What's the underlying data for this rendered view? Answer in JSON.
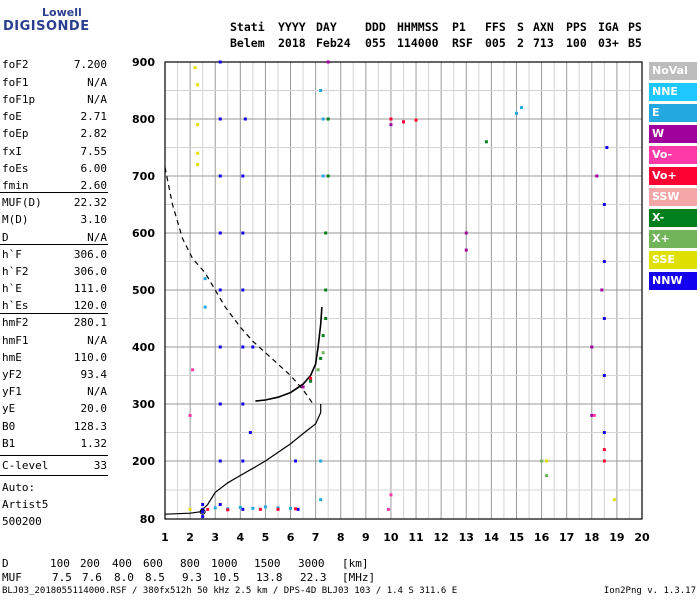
{
  "logo": {
    "top": "Lowell",
    "bottom": "DIGISONDE"
  },
  "header": {
    "labels": [
      "Stati",
      "YYYY",
      "DAY",
      "DDD",
      "HHMMSS",
      "P1",
      "FFS",
      "S",
      "AXN",
      "PPS",
      "IGA",
      "PS"
    ],
    "values": [
      "Belem",
      "2018",
      "Feb24",
      "055",
      "114000",
      "RSF",
      "005",
      "2",
      "713",
      "100",
      "03+",
      "B5"
    ]
  },
  "params": [
    {
      "label": "foF2",
      "value": "7.200"
    },
    {
      "label": "foF1",
      "value": "N/A"
    },
    {
      "label": "foF1p",
      "value": "N/A"
    },
    {
      "label": "foE",
      "value": "2.71"
    },
    {
      "label": "foEp",
      "value": "2.82"
    },
    {
      "label": "fxI",
      "value": "7.55"
    },
    {
      "label": "foEs",
      "value": "6.00"
    },
    {
      "label": "fmin",
      "value": "2.60"
    },
    {
      "label": "MUF(D)",
      "value": "22.32"
    },
    {
      "label": "M(D)",
      "value": "3.10"
    },
    {
      "label": "D",
      "value": "N/A"
    },
    {
      "label": "h`F",
      "value": "306.0"
    },
    {
      "label": "h`F2",
      "value": "306.0"
    },
    {
      "label": "h`E",
      "value": "111.0"
    },
    {
      "label": "h`Es",
      "value": "120.0"
    },
    {
      "label": "hmF2",
      "value": "280.1"
    },
    {
      "label": "hmF1",
      "value": "N/A"
    },
    {
      "label": "hmE",
      "value": "110.0"
    },
    {
      "label": "yF2",
      "value": "93.4"
    },
    {
      "label": "yF1",
      "value": "N/A"
    },
    {
      "label": "yE",
      "value": "20.0"
    },
    {
      "label": "B0",
      "value": "128.3"
    },
    {
      "label": "B1",
      "value": "1.32"
    },
    {
      "label": "C-level",
      "value": "33"
    }
  ],
  "auto": {
    "line1": "Auto:",
    "line2": "Artist5",
    "line3": "500200"
  },
  "legend": [
    {
      "label": "NoVal",
      "bg": "#bdbdbd",
      "fg": "#ffffff"
    },
    {
      "label": "NNE",
      "bg": "#1ec8ff",
      "fg": "#ffffff"
    },
    {
      "label": "E",
      "bg": "#23a9e0",
      "fg": "#ffffff"
    },
    {
      "label": "W",
      "bg": "#a0009c",
      "fg": "#ffffff"
    },
    {
      "label": "Vo-",
      "bg": "#ff3aa8",
      "fg": "#ffffff"
    },
    {
      "label": "Vo+",
      "bg": "#ff0033",
      "fg": "#ffffff"
    },
    {
      "label": "SSW",
      "bg": "#f5a6a6",
      "fg": "#ffffff"
    },
    {
      "label": "X-",
      "bg": "#007f1c",
      "fg": "#ffffff"
    },
    {
      "label": "X+",
      "bg": "#72b45a",
      "fg": "#ffffff"
    },
    {
      "label": "SSE",
      "bg": "#e0e000",
      "fg": "#ffffff"
    },
    {
      "label": "NNW",
      "bg": "#1400ee",
      "fg": "#ffffff"
    }
  ],
  "bottom": {
    "d_label": "D",
    "d_values": [
      "100",
      "200",
      "400",
      "600",
      "800",
      "1000",
      "1500",
      "3000"
    ],
    "d_unit": "[km]",
    "muf_label": "MUF",
    "muf_values": [
      "7.5",
      "7.6",
      "8.0",
      "8.5",
      "9.3",
      "10.5",
      "13.8",
      "22.3"
    ],
    "muf_unit": "[MHz]"
  },
  "footer": {
    "left": "BLJ03_2018055114000.RSF / 380fx512h 50 kHz 2.5 km / DPS-4D BLJ03 103 / 1.4 S 311.6 E",
    "right": "Ion2Png v. 1.3.17"
  },
  "chart_data": {
    "type": "scatter",
    "x_ticks": [
      "1",
      "2",
      "3",
      "4",
      "5",
      "6",
      "7",
      "8",
      "9",
      "10",
      "11",
      "12",
      "13",
      "14",
      "15",
      "16",
      "17",
      "18",
      "19",
      "20"
    ],
    "y_ticks": [
      "900",
      "800",
      "700",
      "600",
      "500",
      "400",
      "300",
      "200",
      "80"
    ],
    "xlim": [
      1,
      20
    ],
    "y_tick_values": [
      900,
      800,
      700,
      600,
      500,
      400,
      300,
      200,
      80
    ],
    "grid": true,
    "legend_position": "right",
    "series": [
      {
        "color": "#1400ee",
        "points": [
          [
            2.5,
            85
          ],
          [
            2.5,
            95
          ],
          [
            2.5,
            100
          ],
          [
            2.5,
            110
          ],
          [
            3.2,
            110
          ],
          [
            3.2,
            200
          ],
          [
            3.2,
            300
          ],
          [
            3.2,
            400
          ],
          [
            3.2,
            500
          ],
          [
            3.2,
            600
          ],
          [
            3.2,
            700
          ],
          [
            3.2,
            800
          ],
          [
            3.2,
            900
          ],
          [
            4.1,
            100
          ],
          [
            4.1,
            200
          ],
          [
            4.1,
            300
          ],
          [
            4.1,
            400
          ],
          [
            4.1,
            500
          ],
          [
            4.1,
            600
          ],
          [
            4.1,
            700
          ],
          [
            4.2,
            800
          ],
          [
            4.4,
            250
          ],
          [
            4.5,
            400
          ],
          [
            6.2,
            200
          ],
          [
            6.3,
            100
          ],
          [
            18.5,
            250
          ],
          [
            18.5,
            350
          ],
          [
            18.5,
            450
          ],
          [
            18.5,
            550
          ],
          [
            18.5,
            650
          ],
          [
            18.6,
            750
          ]
        ]
      },
      {
        "color": "#23a9e0",
        "points": [
          [
            3.0,
            103
          ],
          [
            3.5,
            101
          ],
          [
            4.0,
            104
          ],
          [
            4.5,
            102
          ],
          [
            5.0,
            105
          ],
          [
            5.5,
            103
          ],
          [
            6.0,
            102
          ],
          [
            7.2,
            120
          ],
          [
            7.2,
            200
          ],
          [
            7.3,
            700
          ],
          [
            7.3,
            800
          ],
          [
            7.2,
            850
          ],
          [
            15.0,
            810
          ],
          [
            15.2,
            820
          ],
          [
            2.6,
            470
          ],
          [
            2.6,
            520
          ]
        ]
      },
      {
        "color": "#a0009c",
        "points": [
          [
            10.0,
            790
          ],
          [
            10.5,
            795
          ],
          [
            13.0,
            570
          ],
          [
            13.0,
            600
          ],
          [
            18.0,
            280
          ],
          [
            18.0,
            400
          ],
          [
            18.4,
            500
          ],
          [
            18.2,
            700
          ],
          [
            6.5,
            330
          ],
          [
            7.5,
            900
          ]
        ]
      },
      {
        "color": "#ff0033",
        "points": [
          [
            2.7,
            100
          ],
          [
            3.5,
            99
          ],
          [
            4.8,
            100
          ],
          [
            5.5,
            100
          ],
          [
            6.2,
            101
          ],
          [
            10.0,
            800
          ],
          [
            10.5,
            795
          ],
          [
            11.0,
            798
          ],
          [
            6.8,
            345
          ],
          [
            18.5,
            200
          ],
          [
            18.5,
            220
          ]
        ]
      },
      {
        "color": "#007f1c",
        "points": [
          [
            7.2,
            380
          ],
          [
            7.3,
            420
          ],
          [
            7.4,
            450
          ],
          [
            7.4,
            500
          ],
          [
            7.4,
            600
          ],
          [
            7.5,
            700
          ],
          [
            7.5,
            800
          ],
          [
            13.8,
            760
          ],
          [
            6.8,
            340
          ]
        ]
      },
      {
        "color": "#72b45a",
        "points": [
          [
            7.1,
            360
          ],
          [
            7.3,
            390
          ],
          [
            16.0,
            200
          ],
          [
            16.2,
            170
          ]
        ]
      },
      {
        "color": "#e0e000",
        "points": [
          [
            2.2,
            890
          ],
          [
            2.3,
            860
          ],
          [
            2.3,
            790
          ],
          [
            2.3,
            740
          ],
          [
            2.3,
            720
          ],
          [
            2.0,
            100
          ],
          [
            16.2,
            200
          ],
          [
            18.9,
            120
          ]
        ]
      },
      {
        "color": "#ff3aa8",
        "points": [
          [
            2.0,
            280
          ],
          [
            2.1,
            360
          ],
          [
            9.9,
            100
          ],
          [
            10.0,
            130
          ],
          [
            18.1,
            280
          ]
        ]
      }
    ],
    "curves": {
      "virtual_trace": [
        [
          4.6,
          305
        ],
        [
          5.0,
          307
        ],
        [
          5.5,
          312
        ],
        [
          6.0,
          320
        ],
        [
          6.5,
          335
        ],
        [
          6.8,
          350
        ],
        [
          7.0,
          370
        ],
        [
          7.1,
          400
        ],
        [
          7.2,
          440
        ],
        [
          7.25,
          470
        ]
      ],
      "profile_solid": [
        [
          1.0,
          90
        ],
        [
          1.5,
          91
        ],
        [
          2.0,
          92
        ],
        [
          2.4,
          95
        ],
        [
          2.7,
          110
        ],
        [
          3.0,
          135
        ],
        [
          3.5,
          155
        ],
        [
          4.0,
          170
        ],
        [
          4.5,
          185
        ],
        [
          5.0,
          200
        ],
        [
          5.5,
          215
        ],
        [
          6.0,
          230
        ],
        [
          6.5,
          248
        ],
        [
          7.0,
          265
        ],
        [
          7.2,
          285
        ],
        [
          7.2,
          300
        ]
      ],
      "profile_dashed": [
        [
          1.0,
          715
        ],
        [
          1.3,
          650
        ],
        [
          1.7,
          590
        ],
        [
          2.1,
          555
        ],
        [
          2.6,
          530
        ],
        [
          3.0,
          500
        ],
        [
          3.4,
          470
        ],
        [
          4.0,
          435
        ],
        [
          4.5,
          410
        ],
        [
          5.0,
          390
        ],
        [
          5.5,
          370
        ],
        [
          6.0,
          350
        ],
        [
          6.5,
          325
        ],
        [
          6.9,
          300
        ]
      ]
    }
  }
}
